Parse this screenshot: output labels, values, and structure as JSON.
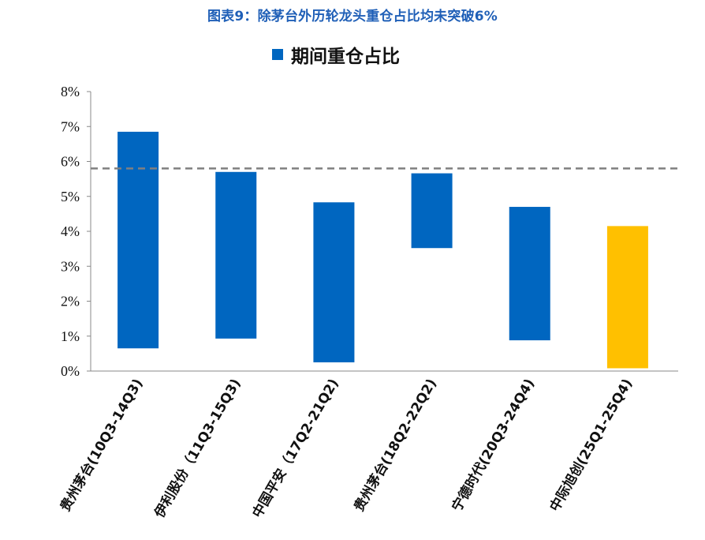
{
  "title": "图表9：除茅台外历轮龙头重仓占比均未突破6%",
  "legend": {
    "label": "期间重仓占比",
    "color": "#0066c0"
  },
  "chart_data": {
    "type": "bar",
    "subtype": "floating-range",
    "title": "图表9：除茅台外历轮龙头重仓占比均未突破6%",
    "ylim": [
      0,
      8
    ],
    "yticks": [
      0,
      1,
      2,
      3,
      4,
      5,
      6,
      7,
      8
    ],
    "ytick_labels": [
      "0%",
      "1%",
      "2%",
      "3%",
      "4%",
      "5%",
      "6%",
      "7%",
      "8%"
    ],
    "reference_line": 5.8,
    "categories": [
      "贵州茅台(10Q3-14Q3)",
      "伊利股份（11Q3-15Q3)",
      "中国平安（17Q2-21Q2)",
      "贵州茅台(18Q2-22Q2)",
      "宁德时代(20Q3-24Q4)",
      "中际旭创(25Q1-25Q4)"
    ],
    "series": [
      {
        "name": "期间重仓占比",
        "low": [
          0.65,
          0.93,
          0.25,
          3.52,
          0.88,
          0.08
        ],
        "high": [
          6.85,
          5.7,
          4.83,
          5.66,
          4.7,
          4.15
        ],
        "colors": [
          "#0066c0",
          "#0066c0",
          "#0066c0",
          "#0066c0",
          "#0066c0",
          "#ffc000"
        ]
      }
    ]
  }
}
